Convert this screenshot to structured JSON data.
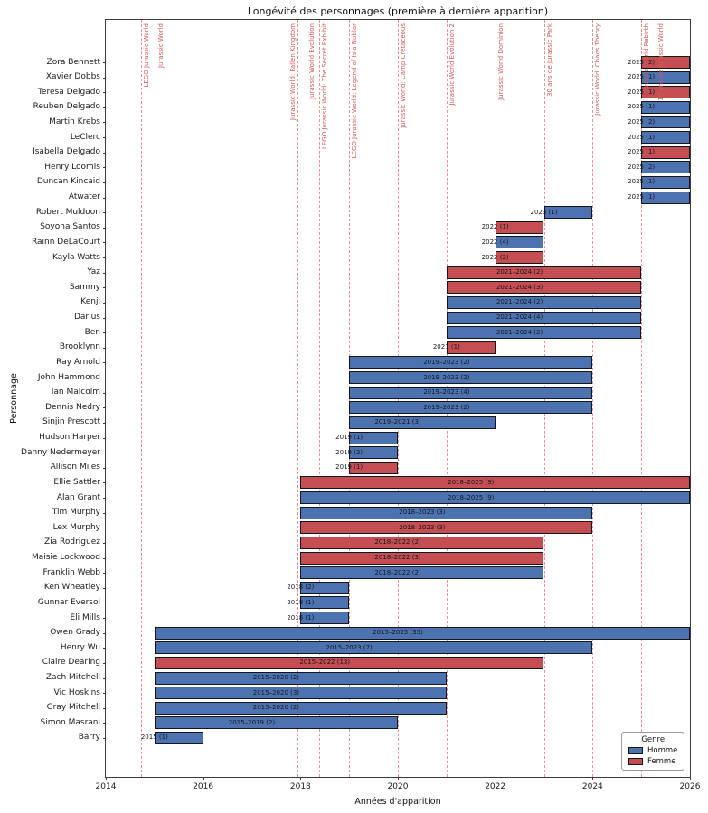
{
  "title": "Longévité des personnages (première à dernière apparition)",
  "legend": {
    "title": "Genre",
    "items": [
      {
        "label": "Homme",
        "color": "#4C72B0"
      },
      {
        "label": "Femme",
        "color": "#C44E52"
      }
    ]
  },
  "colors": {
    "homme": "#4C72B0",
    "femme": "#C44E52",
    "event_line": "rgba(205,62,55,0.55)",
    "event_text": "#cd5c5c"
  },
  "chart_data": {
    "type": "bar",
    "orientation": "horizontal",
    "title": "Longévité des personnages (première à dernière apparition)",
    "xlabel": "Années d'apparition",
    "ylabel": "Personnage",
    "xlim": [
      2014,
      2026
    ],
    "x_ticks": [
      2014,
      2016,
      2018,
      2020,
      2022,
      2024,
      2026
    ],
    "grid": false,
    "legend_position": "lower right",
    "events": [
      {
        "year": 2014.72,
        "label": "LEGO Jurassic World"
      },
      {
        "year": 2015.02,
        "label": "Jurassic World"
      },
      {
        "year": 2017.93,
        "label": "Jurassic World: Fallen Kingdom",
        "side": "left"
      },
      {
        "year": 2018.12,
        "label": "Jurassic World Evolution"
      },
      {
        "year": 2018.38,
        "label": "LEGO Jurassic World: The Secret Exhibit"
      },
      {
        "year": 2019.0,
        "label": "LEGO Jurassic World: Legend of Isla Nublar"
      },
      {
        "year": 2020.0,
        "label": "Jurassic World: Camp Cretaceous"
      },
      {
        "year": 2021.0,
        "label": "Jurassic World Evolution 2"
      },
      {
        "year": 2022.0,
        "label": "Jurassic World Dominion"
      },
      {
        "year": 2023.0,
        "label": "30 ans de Jurassic Park"
      },
      {
        "year": 2024.0,
        "label": "Jurassic World: Chaos Theory"
      },
      {
        "year": 2025.0,
        "label": "Jurassic World Rebirth"
      },
      {
        "year": 2025.3,
        "label": "10 ans de Jurassic World"
      }
    ],
    "rows": [
      {
        "name": "Zora Bennett",
        "label": "2025 (2)",
        "gender": "Femme",
        "start": 2025,
        "end": 2026,
        "label_x": 2025
      },
      {
        "name": "Xavier Dobbs",
        "label": "2025 (1)",
        "gender": "Homme",
        "start": 2025,
        "end": 2026,
        "label_x": 2025
      },
      {
        "name": "Teresa Delgado",
        "label": "2025 (1)",
        "gender": "Femme",
        "start": 2025,
        "end": 2026,
        "label_x": 2025
      },
      {
        "name": "Reuben Delgado",
        "label": "2025 (1)",
        "gender": "Homme",
        "start": 2025,
        "end": 2026,
        "label_x": 2025
      },
      {
        "name": "Martin Krebs",
        "label": "2025 (2)",
        "gender": "Homme",
        "start": 2025,
        "end": 2026,
        "label_x": 2025
      },
      {
        "name": "LeClerc",
        "label": "2025 (1)",
        "gender": "Homme",
        "start": 2025,
        "end": 2026,
        "label_x": 2025
      },
      {
        "name": "Isabella Delgado",
        "label": "2025 (1)",
        "gender": "Femme",
        "start": 2025,
        "end": 2026,
        "label_x": 2025
      },
      {
        "name": "Henry Loomis",
        "label": "2025 (2)",
        "gender": "Homme",
        "start": 2025,
        "end": 2026,
        "label_x": 2025
      },
      {
        "name": "Duncan Kincaid",
        "label": "2025 (1)",
        "gender": "Homme",
        "start": 2025,
        "end": 2026,
        "label_x": 2025
      },
      {
        "name": "Atwater",
        "label": "2025 (1)",
        "gender": "Homme",
        "start": 2025,
        "end": 2026,
        "label_x": 2025
      },
      {
        "name": "Robert Muldoon",
        "label": "2023 (1)",
        "gender": "Homme",
        "start": 2023,
        "end": 2024,
        "label_x": 2023
      },
      {
        "name": "Soyona Santos",
        "label": "2022 (1)",
        "gender": "Femme",
        "start": 2022,
        "end": 2023,
        "label_x": 2022
      },
      {
        "name": "Rainn DeLaCourt",
        "label": "2022 (4)",
        "gender": "Homme",
        "start": 2022,
        "end": 2023,
        "label_x": 2022
      },
      {
        "name": "Kayla Watts",
        "label": "2022 (2)",
        "gender": "Femme",
        "start": 2022,
        "end": 2023,
        "label_x": 2022
      },
      {
        "name": "Yaz",
        "label": "2021–2024 (2)",
        "gender": "Femme",
        "start": 2021,
        "end": 2025,
        "label_x": 2022.5
      },
      {
        "name": "Sammy",
        "label": "2021–2024 (3)",
        "gender": "Femme",
        "start": 2021,
        "end": 2025,
        "label_x": 2022.5
      },
      {
        "name": "Kenji",
        "label": "2021–2024 (2)",
        "gender": "Homme",
        "start": 2021,
        "end": 2025,
        "label_x": 2022.5
      },
      {
        "name": "Darius",
        "label": "2021–2024 (4)",
        "gender": "Homme",
        "start": 2021,
        "end": 2025,
        "label_x": 2022.5
      },
      {
        "name": "Ben",
        "label": "2021–2024 (2)",
        "gender": "Homme",
        "start": 2021,
        "end": 2025,
        "label_x": 2022.5
      },
      {
        "name": "Brooklynn",
        "label": "2021 (1)",
        "gender": "Femme",
        "start": 2021,
        "end": 2022,
        "label_x": 2021
      },
      {
        "name": "Ray Arnold",
        "label": "2019–2023 (2)",
        "gender": "Homme",
        "start": 2019,
        "end": 2024,
        "label_x": 2021
      },
      {
        "name": "John Hammond",
        "label": "2019–2023 (2)",
        "gender": "Homme",
        "start": 2019,
        "end": 2024,
        "label_x": 2021
      },
      {
        "name": "Ian Malcolm",
        "label": "2019–2023 (4)",
        "gender": "Homme",
        "start": 2019,
        "end": 2024,
        "label_x": 2021
      },
      {
        "name": "Dennis Nedry",
        "label": "2019–2023 (2)",
        "gender": "Homme",
        "start": 2019,
        "end": 2024,
        "label_x": 2021
      },
      {
        "name": "Sinjin Prescott",
        "label": "2019–2021 (3)",
        "gender": "Homme",
        "start": 2019,
        "end": 2022,
        "label_x": 2020
      },
      {
        "name": "Hudson Harper",
        "label": "2019 (1)",
        "gender": "Homme",
        "start": 2019,
        "end": 2020,
        "label_x": 2019
      },
      {
        "name": "Danny Nedermeyer",
        "label": "2019 (2)",
        "gender": "Homme",
        "start": 2019,
        "end": 2020,
        "label_x": 2019
      },
      {
        "name": "Allison Miles",
        "label": "2019 (1)",
        "gender": "Femme",
        "start": 2019,
        "end": 2020,
        "label_x": 2019
      },
      {
        "name": "Ellie Sattler",
        "label": "2018–2025 (9)",
        "gender": "Femme",
        "start": 2018,
        "end": 2026,
        "label_x": 2021.5
      },
      {
        "name": "Alan Grant",
        "label": "2018–2025 (9)",
        "gender": "Homme",
        "start": 2018,
        "end": 2026,
        "label_x": 2021.5
      },
      {
        "name": "Tim Murphy",
        "label": "2018–2023 (3)",
        "gender": "Homme",
        "start": 2018,
        "end": 2024,
        "label_x": 2020.5
      },
      {
        "name": "Lex Murphy",
        "label": "2018–2023 (3)",
        "gender": "Femme",
        "start": 2018,
        "end": 2024,
        "label_x": 2020.5
      },
      {
        "name": "Zia Rodriguez",
        "label": "2018–2022 (2)",
        "gender": "Femme",
        "start": 2018,
        "end": 2023,
        "label_x": 2020
      },
      {
        "name": "Maisie Lockwood",
        "label": "2018–2022 (3)",
        "gender": "Femme",
        "start": 2018,
        "end": 2023,
        "label_x": 2020
      },
      {
        "name": "Franklin Webb",
        "label": "2018–2022 (2)",
        "gender": "Homme",
        "start": 2018,
        "end": 2023,
        "label_x": 2020
      },
      {
        "name": "Ken Wheatley",
        "label": "2018 (2)",
        "gender": "Homme",
        "start": 2018,
        "end": 2019,
        "label_x": 2018
      },
      {
        "name": "Gunnar Eversol",
        "label": "2018 (1)",
        "gender": "Homme",
        "start": 2018,
        "end": 2019,
        "label_x": 2018
      },
      {
        "name": "Eli Mills",
        "label": "2018 (1)",
        "gender": "Homme",
        "start": 2018,
        "end": 2019,
        "label_x": 2018
      },
      {
        "name": "Owen Grady",
        "label": "2015–2025 (35)",
        "gender": "Homme",
        "start": 2015,
        "end": 2026,
        "label_x": 2020
      },
      {
        "name": "Henry Wu",
        "label": "2015–2023 (7)",
        "gender": "Homme",
        "start": 2015,
        "end": 2024,
        "label_x": 2019
      },
      {
        "name": "Claire Dearing",
        "label": "2015–2022 (13)",
        "gender": "Femme",
        "start": 2015,
        "end": 2023,
        "label_x": 2018.5
      },
      {
        "name": "Zach Mitchell",
        "label": "2015–2020 (2)",
        "gender": "Homme",
        "start": 2015,
        "end": 2021,
        "label_x": 2017.5
      },
      {
        "name": "Vic Hoskins",
        "label": "2015–2020 (3)",
        "gender": "Homme",
        "start": 2015,
        "end": 2021,
        "label_x": 2017.5
      },
      {
        "name": "Gray Mitchell",
        "label": "2015–2020 (2)",
        "gender": "Homme",
        "start": 2015,
        "end": 2021,
        "label_x": 2017.5
      },
      {
        "name": "Simon Masrani",
        "label": "2015–2019 (2)",
        "gender": "Homme",
        "start": 2015,
        "end": 2020,
        "label_x": 2017
      },
      {
        "name": "Barry",
        "label": "2015 (1)",
        "gender": "Homme",
        "start": 2015,
        "end": 2016,
        "label_x": 2015
      }
    ]
  }
}
